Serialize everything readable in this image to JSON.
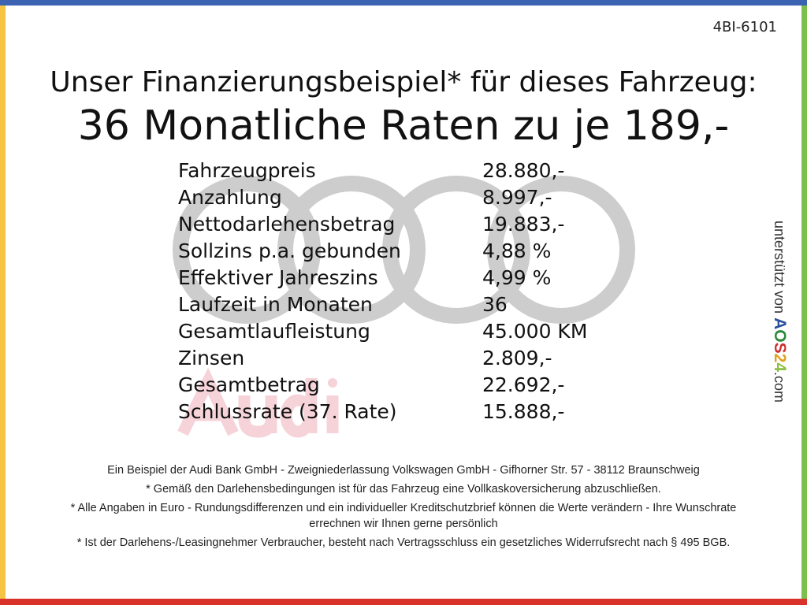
{
  "colors": {
    "top_border": "#3c63b2",
    "left_border": "#f6c443",
    "right_border": "#7cbf4d",
    "bottom_border": "#d8322a",
    "rings": "#cccccc",
    "audi_watermark": "#f6d3d8"
  },
  "code": "4BI-6101",
  "headline": "Unser Finanzierungsbeispiel* für dieses Fahrzeug:",
  "subhead": "36 Monatliche Raten zu je 189,-",
  "watermark": {
    "logo": "audi-four-rings",
    "text": "Audi"
  },
  "rows": [
    {
      "label": "Fahrzeugpreis",
      "value": "28.880,-"
    },
    {
      "label": "Anzahlung",
      "value": "8.997,-"
    },
    {
      "label": "Nettodarlehensbetrag",
      "value": "19.883,-"
    },
    {
      "label": "Sollzins p.a. gebunden",
      "value": "4,88 %"
    },
    {
      "label": "Effektiver Jahreszins",
      "value": "4,99 %"
    },
    {
      "label": "Laufzeit in Monaten",
      "value": "36"
    },
    {
      "label": "Gesamtlaufleistung",
      "value": "45.000 KM"
    },
    {
      "label": "Zinsen",
      "value": "2.809,-"
    },
    {
      "label": "Gesamtbetrag",
      "value": "22.692,-"
    },
    {
      "label": "Schlussrate (37. Rate)",
      "value": "15.888,-"
    }
  ],
  "footer": [
    "Ein Beispiel der Audi Bank GmbH - Zweigniederlassung Volkswagen GmbH - Gifhorner Str. 57 - 38112 Braunschweig",
    "* Gemäß den Darlehensbedingungen ist für das Fahrzeug eine Vollkaskoversicherung abzuschließen.",
    "* Alle Angaben in Euro - Rundungsdifferenzen und ein individueller Kreditschutzbrief können die Werte verändern - Ihre Wunschrate errechnen wir Ihnen gerne persönlich",
    "* Ist der Darlehens-/Leasingnehmer Verbraucher, besteht nach Vertragsschluss ein gesetzliches Widerrufsrecht nach § 495 BGB."
  ],
  "side": {
    "prefix": "unterstützt von",
    "brand": [
      "A",
      "O",
      "S",
      "2",
      "4"
    ],
    "brand_colors": [
      "#2a4f9c",
      "#2a8a3a",
      "#d03030",
      "#e0a020",
      "#8cc040"
    ],
    "suffix": ".com"
  }
}
